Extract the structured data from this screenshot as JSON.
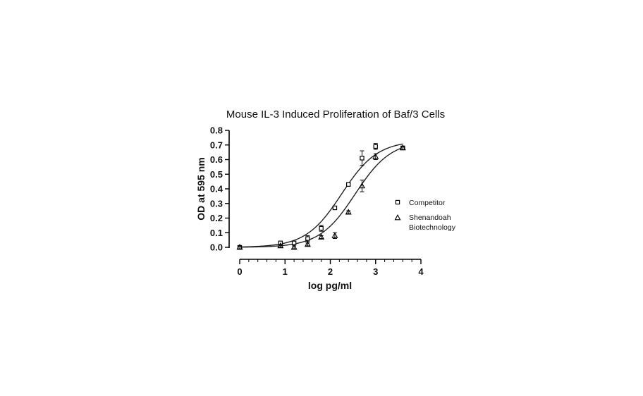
{
  "chart_data": {
    "type": "scatter",
    "title": "Mouse IL-3 Induced Proliferation of Baf/3 Cells",
    "xlabel": "log pg/ml",
    "ylabel": "OD at 595 nm",
    "xlim": [
      0,
      4
    ],
    "ylim": [
      0,
      0.8
    ],
    "x_ticks": [
      0,
      1,
      2,
      3,
      4
    ],
    "y_ticks": [
      0.0,
      0.1,
      0.2,
      0.3,
      0.4,
      0.5,
      0.6,
      0.7,
      0.8
    ],
    "x_tick_labels": [
      "0",
      "1",
      "2",
      "3",
      "4"
    ],
    "y_tick_labels": [
      "0.0",
      "0.1",
      "0.2",
      "0.3",
      "0.4",
      "0.5",
      "0.6",
      "0.7",
      "0.8"
    ],
    "grid": false,
    "legend_position": "right",
    "series": [
      {
        "name": "Competitor",
        "marker": "square",
        "x": [
          0,
          0.9,
          1.2,
          1.5,
          1.8,
          2.1,
          2.4,
          2.7,
          3.0,
          3.6
        ],
        "y": [
          0.0,
          0.03,
          0.03,
          0.06,
          0.13,
          0.27,
          0.43,
          0.61,
          0.69,
          0.68
        ],
        "error": [
          0.01,
          0.01,
          0.01,
          0.02,
          0.02,
          0.01,
          0.01,
          0.05,
          0.02,
          0.01
        ],
        "fit": {
          "bottom": 0.0,
          "top": 0.73,
          "logEC50": 2.25,
          "hill": 1.1
        }
      },
      {
        "name": "Shenandoah Biotechnology",
        "marker": "triangle",
        "x": [
          0,
          0.9,
          1.2,
          1.5,
          1.8,
          2.1,
          2.4,
          2.7,
          3.0,
          3.6
        ],
        "y": [
          0.0,
          0.01,
          0.0,
          0.02,
          0.07,
          0.08,
          0.24,
          0.42,
          0.62,
          0.68
        ],
        "error": [
          0.01,
          0.01,
          0.01,
          0.01,
          0.01,
          0.02,
          0.01,
          0.04,
          0.02,
          0.01
        ],
        "fit": {
          "bottom": 0.0,
          "top": 0.73,
          "logEC50": 2.55,
          "hill": 1.1
        }
      }
    ]
  }
}
